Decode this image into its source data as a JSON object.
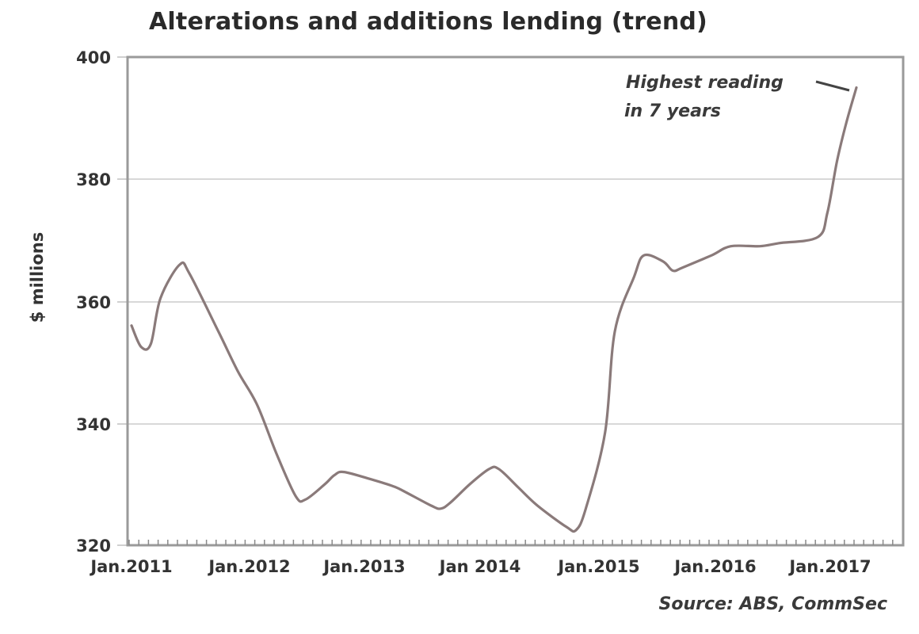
{
  "chart_data": {
    "type": "line",
    "title": "Alterations and additions lending (trend)",
    "xlabel": "",
    "ylabel": "$ millions",
    "ylim": [
      320,
      400
    ],
    "yticks": [
      320,
      340,
      360,
      380,
      400
    ],
    "xtick_labels": [
      "Jan.2011",
      "Jan.2012",
      "Jan.2013",
      "Jan 2014",
      "Jan.2015",
      "Jan.2016",
      "Jan.2017"
    ],
    "grid": {
      "horizontal": true,
      "vertical": false
    },
    "legend": null,
    "annotation": {
      "line1": "Highest reading",
      "line2": "in 7 years"
    },
    "source": "Source: ABS, CommSec",
    "line_color": "#8a7a7a",
    "series": [
      {
        "name": "Alterations and additions lending (trend)",
        "points": [
          {
            "date": "2011-01",
            "value": 356.0
          },
          {
            "date": "2011-02",
            "value": 352.5
          },
          {
            "date": "2011-03",
            "value": 353.0
          },
          {
            "date": "2011-04",
            "value": 360.5
          },
          {
            "date": "2011-06",
            "value": 366.0
          },
          {
            "date": "2011-07",
            "value": 364.5
          },
          {
            "date": "2011-10",
            "value": 355.0
          },
          {
            "date": "2011-12",
            "value": 348.5
          },
          {
            "date": "2012-02",
            "value": 343.0
          },
          {
            "date": "2012-04",
            "value": 335.0
          },
          {
            "date": "2012-06",
            "value": 328.0
          },
          {
            "date": "2012-07",
            "value": 327.5
          },
          {
            "date": "2012-09",
            "value": 330.0
          },
          {
            "date": "2012-10",
            "value": 331.5
          },
          {
            "date": "2012-11",
            "value": 332.0
          },
          {
            "date": "2013-02",
            "value": 330.7
          },
          {
            "date": "2013-04",
            "value": 329.7
          },
          {
            "date": "2013-05",
            "value": 329.0
          },
          {
            "date": "2013-08",
            "value": 326.5
          },
          {
            "date": "2013-09",
            "value": 326.0
          },
          {
            "date": "2013-10",
            "value": 327.0
          },
          {
            "date": "2013-12",
            "value": 330.0
          },
          {
            "date": "2014-02",
            "value": 332.5
          },
          {
            "date": "2014-03",
            "value": 332.5
          },
          {
            "date": "2014-05",
            "value": 329.5
          },
          {
            "date": "2014-07",
            "value": 326.5
          },
          {
            "date": "2014-10",
            "value": 323.0
          },
          {
            "date": "2014-11",
            "value": 322.5
          },
          {
            "date": "2014-12",
            "value": 326.0
          },
          {
            "date": "2015-02",
            "value": 338.5
          },
          {
            "date": "2015-03",
            "value": 355.0
          },
          {
            "date": "2015-05",
            "value": 364.0
          },
          {
            "date": "2015-06",
            "value": 367.5
          },
          {
            "date": "2015-08",
            "value": 366.5
          },
          {
            "date": "2015-09",
            "value": 365.0
          },
          {
            "date": "2015-10",
            "value": 365.5
          },
          {
            "date": "2016-01",
            "value": 367.5
          },
          {
            "date": "2016-03",
            "value": 369.0
          },
          {
            "date": "2016-06",
            "value": 369.0
          },
          {
            "date": "2016-08",
            "value": 369.5
          },
          {
            "date": "2016-12",
            "value": 370.5
          },
          {
            "date": "2017-01",
            "value": 374.5
          },
          {
            "date": "2017-02",
            "value": 383.0
          },
          {
            "date": "2017-03",
            "value": 389.5
          },
          {
            "date": "2017-04",
            "value": 395.0
          }
        ]
      }
    ]
  },
  "labels": {
    "title": "Alterations and additions lending (trend)",
    "ylabel": "$ millions",
    "yticks": [
      "400",
      "380",
      "360",
      "340",
      "320"
    ],
    "xticks": [
      "Jan.2011",
      "Jan.2012",
      "Jan.2013",
      "Jan 2014",
      "Jan.2015",
      "Jan.2016",
      "Jan.2017"
    ],
    "annotation_line1": "Highest reading",
    "annotation_line2": "in 7 years",
    "source": "Source: ABS, CommSec"
  }
}
